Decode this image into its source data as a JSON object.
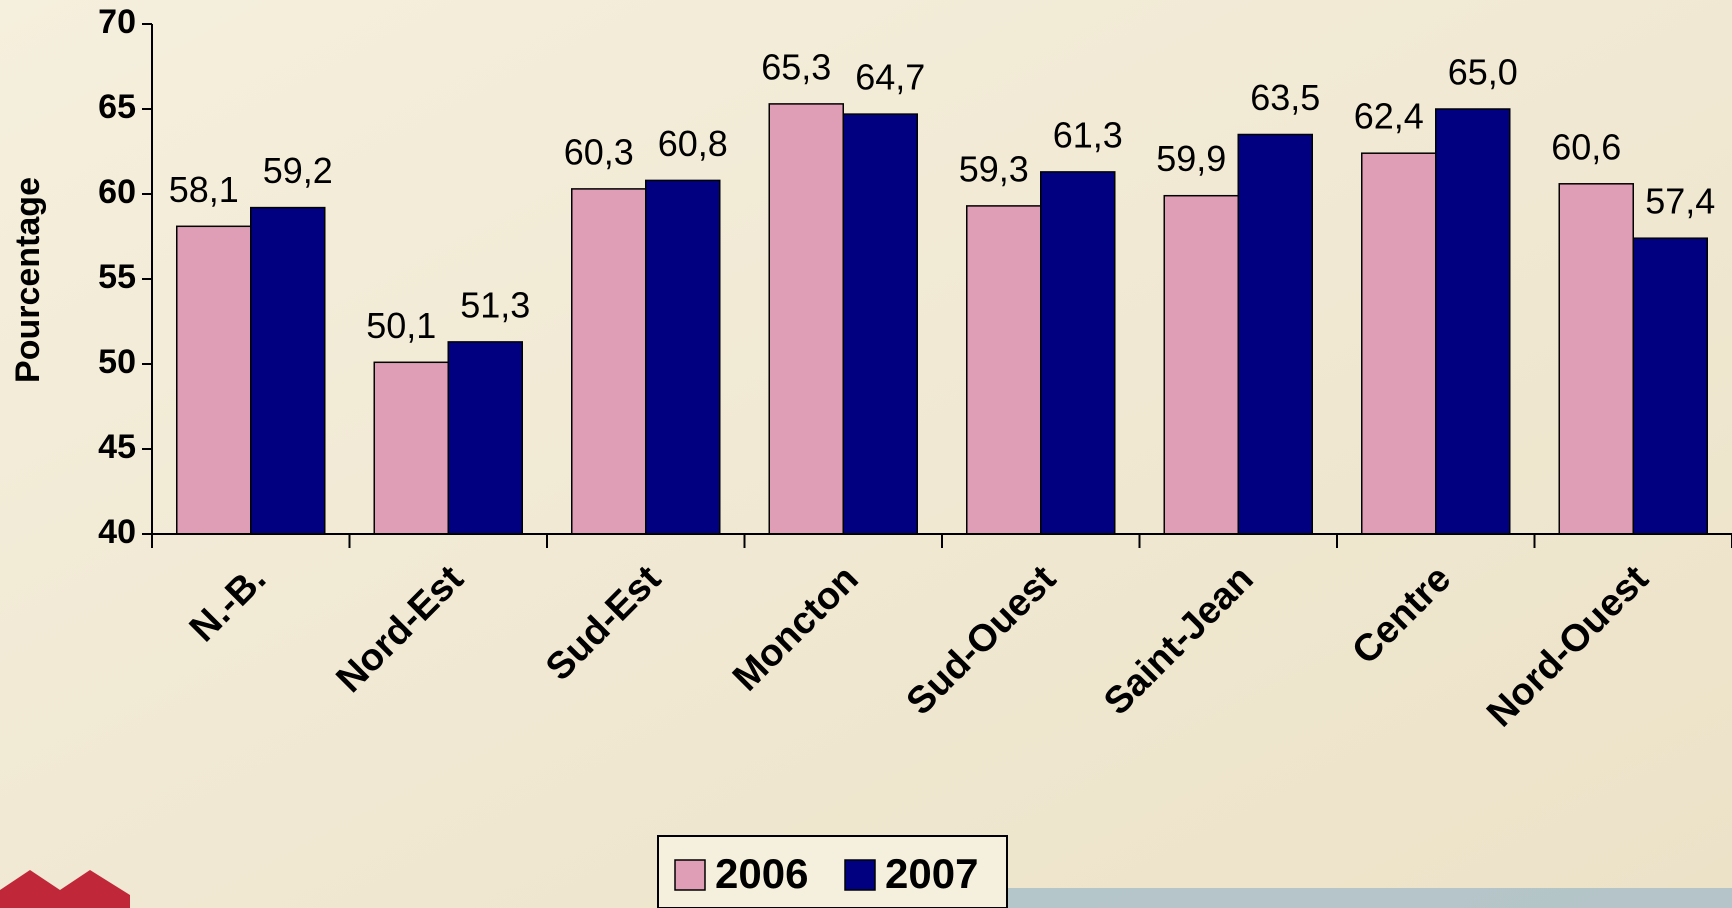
{
  "chart_data": {
    "type": "bar",
    "y_label": "Pourcentage",
    "categories": [
      "N.-B.",
      "Nord-Est",
      "Sud-Est",
      "Moncton",
      "Sud-Ouest",
      "Saint-Jean",
      "Centre",
      "Nord-Ouest"
    ],
    "series": [
      {
        "name": "2006",
        "color": "#e09db6",
        "values": [
          58.1,
          50.1,
          60.3,
          65.3,
          59.3,
          59.9,
          62.4,
          60.6
        ],
        "value_labels": [
          "58,1",
          "50,1",
          "60,3",
          "65,3",
          "59,3",
          "59,9",
          "62,4",
          "60,6"
        ]
      },
      {
        "name": "2007",
        "color": "#000080",
        "values": [
          59.2,
          51.3,
          60.8,
          64.7,
          61.3,
          63.5,
          65.0,
          57.4
        ],
        "value_labels": [
          "59,2",
          "51,3",
          "60,8",
          "64,7",
          "61,3",
          "63,5",
          "65,0",
          "57,4"
        ]
      }
    ],
    "ylim": [
      40,
      70
    ],
    "yticks": [
      40,
      45,
      50,
      55,
      60,
      65,
      70
    ],
    "legend": "bottom"
  }
}
